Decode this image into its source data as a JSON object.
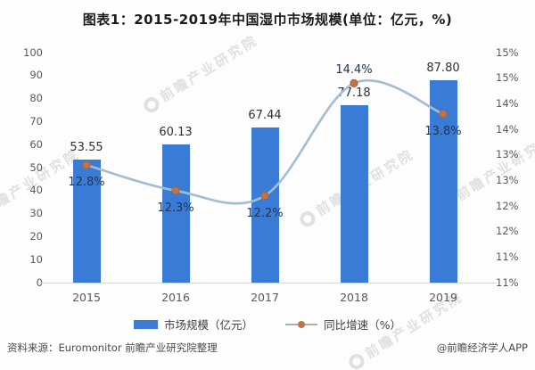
{
  "title": "图表1：2015-2019年中国湿巾市场规模(单位：亿元，%)",
  "chart_data": {
    "type": "bar",
    "subtype": "bar+line-combo",
    "title": "图表1：2015-2019年中国湿巾市场规模(单位：亿元，%)",
    "categories": [
      "2015",
      "2016",
      "2017",
      "2018",
      "2019"
    ],
    "series": [
      {
        "name": "市场规模（亿元）",
        "type": "bar",
        "axis": "left",
        "values": [
          53.55,
          60.13,
          67.44,
          77.18,
          87.8
        ],
        "value_labels": [
          "53.55",
          "60.13",
          "67.44",
          "77.18",
          "87.80"
        ],
        "color": "#3a7cd5"
      },
      {
        "name": "同比增速（%）",
        "type": "line",
        "axis": "right",
        "values": [
          12.8,
          12.3,
          12.2,
          14.4,
          13.8
        ],
        "value_labels": [
          "12.8%",
          "12.3%",
          "12.2%",
          "14.4%",
          "13.8%"
        ],
        "label_position": [
          "below",
          "below",
          "below",
          "above",
          "below"
        ],
        "line_color": "#a3bcd6",
        "marker_color": "#bf7447"
      }
    ],
    "left_axis": {
      "min": 0,
      "max": 100,
      "tick_labels_top_to_bottom": [
        "100",
        "90",
        "80",
        "70",
        "60",
        "50",
        "40",
        "30",
        "20",
        "10",
        "0"
      ]
    },
    "right_axis": {
      "min": 10.5,
      "max": 15.0,
      "tick_labels_top_to_bottom": [
        "15%",
        "15%",
        "14%",
        "14%",
        "13%",
        "13%",
        "12%",
        "12%",
        "11%",
        "11%"
      ]
    },
    "grid": false,
    "legend_position": "bottom"
  },
  "legend": {
    "bar_label": "市场规模（亿元）",
    "line_label": "同比增速（%）"
  },
  "footer": {
    "source": "资料来源：Euromonitor 前瞻产业研究院整理",
    "credit": "@前瞻经济学人APP"
  },
  "watermark": {
    "text": "前瞻产业研究院"
  },
  "colors": {
    "bar": "#3a7cd5",
    "line": "#a3bcd6",
    "marker": "#bf7447",
    "axis_text": "#595959",
    "value_label": "#303030",
    "pct_label": "#22344e",
    "axis_line": "#d6d6d6"
  }
}
